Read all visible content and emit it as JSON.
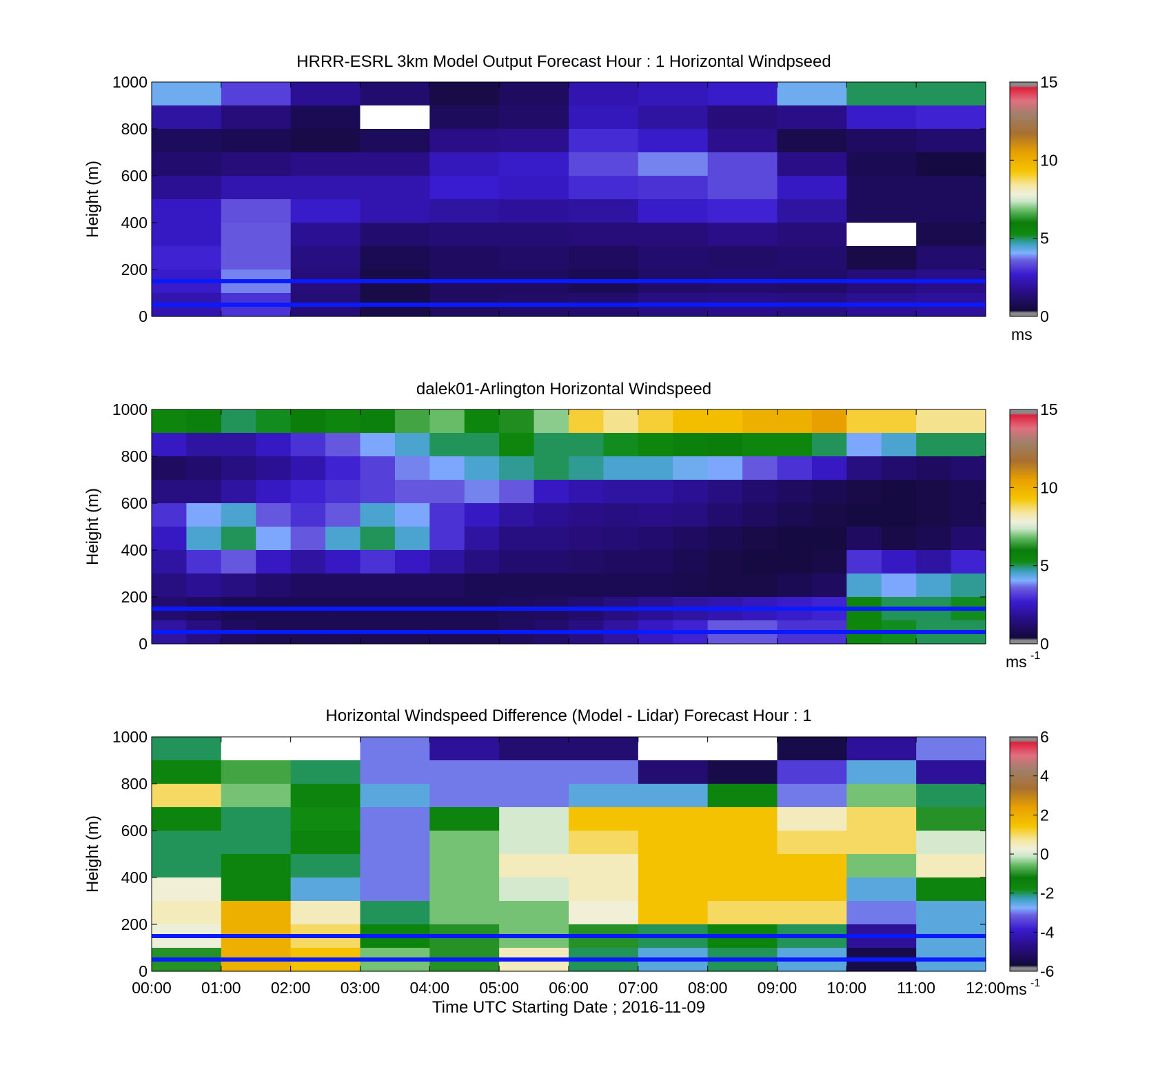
{
  "figure": {
    "xlabel": "Time UTC  Starting Date ; 2016-11-09",
    "x_ticks": [
      "00:00",
      "01:00",
      "02:00",
      "03:00",
      "04:00",
      "05:00",
      "06:00",
      "07:00",
      "08:00",
      "09:00",
      "10:00",
      "11:00",
      "12:00"
    ]
  },
  "chart_data": [
    {
      "type": "heatmap",
      "title": "HRRR-ESRL 3km Model Output   Forecast Hour : 1 Horizontal Windpseed",
      "ylabel": "Height (m)",
      "xlim": [
        "00:00",
        "12:00"
      ],
      "ylim": [
        0,
        1000
      ],
      "y_ticks": [
        "0",
        "200",
        "400",
        "600",
        "800",
        "1000"
      ],
      "colorbar": {
        "ticks": [
          "0",
          "5",
          "10",
          "15"
        ],
        "range": [
          0,
          15
        ],
        "unit": "ms",
        "unit_sup": "",
        "colormap": "custom-purple-blue-green-yellow-brown-red"
      },
      "time_columns": [
        "00:00",
        "01:00",
        "02:00",
        "03:00",
        "04:00",
        "05:00",
        "06:00",
        "07:00",
        "08:00",
        "09:00",
        "10:00",
        "11:00"
      ],
      "height_levels_m": [
        950,
        850,
        750,
        650,
        550,
        450,
        350,
        250,
        150,
        50
      ],
      "values_ms": [
        [
          4.2,
          3.2,
          1.8,
          1.2,
          0.6,
          1.0,
          2.2,
          2.4,
          2.6,
          4.2,
          5.0,
          5.0
        ],
        [
          2.0,
          1.4,
          0.8,
          null,
          0.9,
          1.1,
          2.4,
          2.0,
          1.4,
          1.6,
          2.6,
          2.8
        ],
        [
          0.9,
          0.8,
          0.6,
          0.9,
          1.6,
          1.7,
          2.9,
          2.6,
          1.7,
          0.7,
          1.0,
          1.2
        ],
        [
          1.2,
          1.4,
          1.6,
          1.6,
          2.4,
          2.6,
          3.3,
          3.8,
          3.3,
          1.6,
          0.8,
          0.5
        ],
        [
          1.8,
          2.2,
          2.2,
          2.2,
          2.7,
          2.5,
          2.9,
          3.0,
          3.3,
          2.5,
          0.9,
          0.9
        ],
        [
          2.5,
          3.4,
          2.6,
          2.2,
          2.0,
          1.9,
          2.0,
          2.6,
          2.8,
          2.0,
          0.9,
          0.9
        ],
        [
          2.5,
          3.5,
          1.8,
          1.2,
          1.3,
          1.3,
          1.4,
          1.4,
          1.6,
          1.4,
          null,
          0.7
        ],
        [
          2.8,
          3.5,
          1.5,
          0.8,
          1.0,
          1.1,
          1.0,
          1.2,
          1.1,
          1.2,
          0.6,
          1.2
        ],
        [
          2.6,
          3.8,
          1.4,
          0.6,
          1.0,
          1.0,
          0.8,
          1.1,
          1.2,
          1.1,
          1.4,
          1.6
        ],
        [
          2.2,
          3.0,
          1.3,
          0.6,
          1.0,
          1.1,
          1.2,
          1.5,
          1.6,
          1.5,
          1.8,
          1.9
        ]
      ],
      "reference_lines_m": [
        150,
        50
      ]
    },
    {
      "type": "heatmap",
      "title": "dalek01-Arlington  Horizontal Windspeed",
      "ylabel": "Height (m)",
      "xlim": [
        "00:00",
        "12:00"
      ],
      "ylim": [
        0,
        1000
      ],
      "y_ticks": [
        "0",
        "200",
        "400",
        "600",
        "800",
        "1000"
      ],
      "colorbar": {
        "ticks": [
          "0",
          "5",
          "10",
          "15"
        ],
        "range": [
          0,
          15
        ],
        "unit": "ms",
        "unit_sup": "-1",
        "colormap": "custom-purple-blue-green-yellow-brown-red"
      },
      "time_columns": [
        "00:00",
        "00:30",
        "01:00",
        "01:30",
        "02:00",
        "02:30",
        "03:00",
        "03:30",
        "04:00",
        "04:30",
        "05:00",
        "05:30",
        "06:00",
        "06:30",
        "07:00",
        "07:30",
        "08:00",
        "08:30",
        "09:00",
        "09:30",
        "10:00",
        "10:30",
        "11:00",
        "11:30"
      ],
      "height_levels_m": [
        950,
        850,
        750,
        650,
        550,
        450,
        350,
        250,
        150,
        50
      ],
      "values_ms": [
        [
          5.5,
          5.8,
          5.0,
          5.2,
          6.0,
          5.5,
          5.8,
          6.5,
          6.8,
          5.5,
          6.2,
          7.0,
          9.0,
          8.5,
          9.0,
          9.5,
          9.5,
          10.0,
          10.0,
          10.5,
          9.0,
          9.0,
          8.5,
          8.5
        ],
        [
          2.5,
          2.0,
          2.0,
          2.5,
          3.0,
          3.5,
          4.0,
          4.5,
          5.0,
          5.0,
          5.5,
          5.0,
          5.0,
          5.2,
          5.5,
          5.8,
          6.0,
          5.5,
          5.5,
          5.0,
          4.0,
          4.5,
          5.0,
          5.0
        ],
        [
          1.0,
          1.2,
          1.5,
          1.8,
          2.2,
          2.8,
          3.2,
          3.8,
          4.0,
          4.5,
          4.8,
          5.0,
          4.8,
          4.5,
          4.5,
          4.2,
          4.0,
          3.5,
          3.0,
          2.5,
          1.5,
          1.2,
          1.0,
          1.2
        ],
        [
          1.5,
          1.5,
          2.0,
          2.5,
          2.8,
          3.0,
          3.2,
          3.5,
          3.5,
          3.8,
          3.5,
          2.5,
          2.2,
          2.0,
          2.0,
          1.8,
          1.5,
          1.2,
          1.0,
          0.8,
          0.6,
          0.5,
          0.6,
          0.8
        ],
        [
          3.0,
          4.0,
          4.5,
          3.5,
          3.0,
          3.5,
          4.5,
          4.0,
          3.0,
          2.5,
          2.0,
          1.8,
          1.6,
          1.5,
          1.6,
          1.5,
          1.2,
          1.0,
          0.8,
          0.6,
          0.5,
          0.5,
          0.6,
          0.8
        ],
        [
          2.5,
          4.5,
          5.0,
          4.0,
          3.5,
          4.5,
          5.0,
          4.5,
          3.0,
          2.0,
          1.5,
          1.5,
          1.4,
          1.3,
          1.2,
          1.0,
          0.8,
          0.6,
          0.5,
          0.5,
          1.0,
          0.6,
          0.8,
          1.2
        ],
        [
          2.0,
          3.0,
          3.5,
          2.5,
          2.0,
          2.5,
          3.0,
          2.5,
          2.0,
          1.5,
          1.2,
          1.2,
          1.1,
          1.0,
          1.0,
          0.8,
          0.6,
          0.5,
          0.5,
          0.6,
          3.0,
          2.5,
          2.0,
          2.8
        ],
        [
          1.5,
          1.8,
          1.5,
          1.2,
          1.0,
          1.0,
          1.0,
          1.0,
          1.0,
          0.8,
          0.8,
          0.8,
          0.8,
          0.8,
          0.8,
          0.7,
          0.6,
          0.6,
          0.8,
          1.0,
          4.5,
          4.0,
          4.5,
          4.8
        ],
        [
          1.2,
          1.0,
          0.8,
          0.8,
          0.8,
          0.8,
          0.8,
          0.8,
          0.8,
          0.8,
          0.9,
          1.0,
          1.2,
          1.5,
          1.8,
          2.0,
          2.2,
          2.4,
          2.6,
          2.8,
          5.5,
          5.0,
          5.0,
          5.2
        ],
        [
          2.0,
          1.5,
          1.0,
          0.8,
          0.8,
          0.8,
          0.8,
          0.8,
          0.8,
          0.8,
          1.0,
          1.2,
          1.5,
          2.0,
          2.5,
          2.8,
          3.5,
          3.5,
          3.0,
          3.0,
          5.5,
          5.2,
          5.0,
          5.0
        ]
      ],
      "reference_lines_m": [
        150,
        50
      ]
    },
    {
      "type": "heatmap",
      "title": "Horizontal Windspeed Difference (Model - Lidar) Forecast Hour : 1",
      "ylabel": "Height (m)",
      "xlim": [
        "00:00",
        "12:00"
      ],
      "ylim": [
        0,
        1000
      ],
      "y_ticks": [
        "0",
        "200",
        "400",
        "600",
        "800",
        "1000"
      ],
      "colorbar": {
        "ticks": [
          "-6",
          "-4",
          "-2",
          "0",
          "2",
          "4",
          "6"
        ],
        "range": [
          -6,
          6
        ],
        "unit": "ms",
        "unit_sup": "-1",
        "colormap": "custom-purple-blue-green-yellow-brown-red"
      },
      "time_columns": [
        "00:00",
        "01:00",
        "02:00",
        "03:00",
        "04:00",
        "05:00",
        "06:00",
        "07:00",
        "08:00",
        "09:00",
        "10:00",
        "11:00"
      ],
      "height_levels_m": [
        950,
        850,
        750,
        650,
        550,
        450,
        350,
        250,
        150,
        50
      ],
      "values_ms": [
        [
          -2.0,
          null,
          null,
          -3.0,
          -4.5,
          -5.0,
          -5.0,
          null,
          null,
          -5.5,
          -4.5,
          -3.0
        ],
        [
          -1.5,
          -0.8,
          -2.0,
          -3.0,
          -3.0,
          -3.0,
          -3.0,
          -5.0,
          -5.5,
          -3.5,
          -2.5,
          -4.5
        ],
        [
          1.0,
          -0.5,
          -1.5,
          -2.5,
          -3.0,
          -3.0,
          -2.5,
          -2.5,
          -1.5,
          -3.0,
          -0.5,
          -2.0
        ],
        [
          -1.5,
          -2.0,
          -1.8,
          -3.0,
          -1.5,
          0.0,
          1.5,
          1.5,
          1.5,
          0.5,
          1.0,
          -1.0
        ],
        [
          -2.0,
          -2.0,
          -1.5,
          -3.0,
          -0.5,
          0.0,
          1.0,
          1.5,
          1.5,
          1.0,
          1.0,
          0.0
        ],
        [
          -2.0,
          -1.5,
          -2.0,
          -3.0,
          -0.5,
          0.5,
          0.5,
          1.5,
          1.5,
          1.5,
          -0.5,
          0.5
        ],
        [
          0.3,
          -1.5,
          -2.5,
          -3.0,
          -0.5,
          0.0,
          0.5,
          1.5,
          1.5,
          1.5,
          -2.5,
          -1.5
        ],
        [
          0.5,
          2.0,
          0.5,
          -2.0,
          -0.5,
          -0.5,
          0.3,
          1.5,
          1.0,
          1.0,
          -3.0,
          -2.5
        ],
        [
          0.2,
          2.0,
          1.0,
          -1.5,
          -1.0,
          -0.5,
          -1.0,
          -2.0,
          -1.5,
          -2.0,
          -4.5,
          -2.5
        ],
        [
          -1.0,
          2.0,
          1.5,
          -0.5,
          -1.0,
          0.5,
          -2.0,
          -2.5,
          -2.0,
          -2.5,
          -5.5,
          -2.5
        ]
      ],
      "reference_lines_m": [
        150,
        50
      ]
    }
  ]
}
